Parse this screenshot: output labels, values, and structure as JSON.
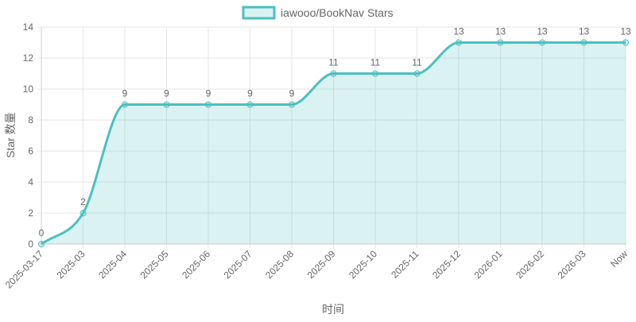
{
  "chart_data": {
    "type": "line",
    "legend": {
      "label": "iawooo/BookNav Stars",
      "position": "top"
    },
    "xlabel": "时间",
    "ylabel": "Star 数量",
    "categories": [
      "2025-03-17",
      "2025-03",
      "2025-04",
      "2025-05",
      "2025-06",
      "2025-07",
      "2025-08",
      "2025-09",
      "2025-10",
      "2025-11",
      "2025-12",
      "2026-01",
      "2026-02",
      "2026-03",
      "Now"
    ],
    "series": [
      {
        "name": "iawooo/BookNav Stars",
        "values": [
          0,
          2,
          9,
          9,
          9,
          9,
          9,
          11,
          11,
          11,
          13,
          13,
          13,
          13,
          13
        ]
      }
    ],
    "ylim": [
      0,
      14
    ],
    "yticks": [
      0,
      2,
      4,
      6,
      8,
      10,
      12,
      14
    ],
    "grid": true,
    "fill": true,
    "data_labels": true,
    "colors": {
      "line": "#4bc0c0",
      "fill": "rgba(75,192,192,0.2)",
      "grid": "#e6e6e6",
      "text": "#666666"
    }
  }
}
